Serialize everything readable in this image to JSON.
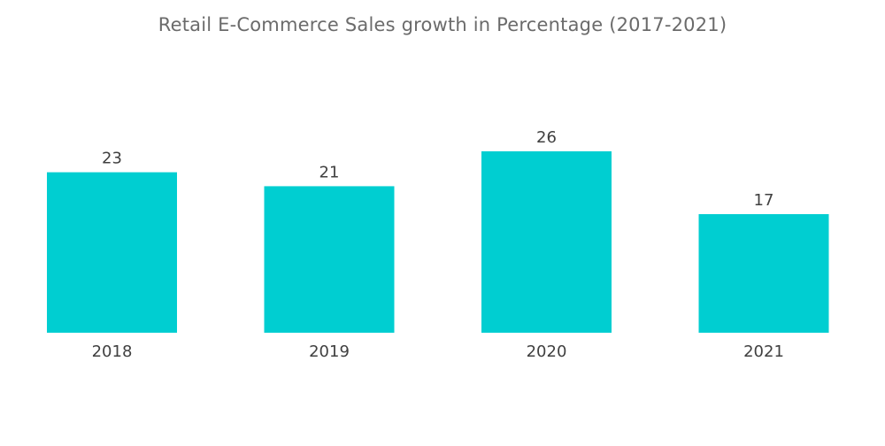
{
  "chart_data": {
    "type": "bar",
    "title": "Retail E-Commerce Sales growth in Percentage (2017-2021)",
    "categories": [
      "2018",
      "2019",
      "2020",
      "2021"
    ],
    "values": [
      23,
      21,
      26,
      17
    ],
    "xlabel": "",
    "ylabel": "",
    "ylim": [
      0,
      26
    ],
    "grid": false,
    "legend": "none",
    "bar_color": "#00CED1"
  }
}
